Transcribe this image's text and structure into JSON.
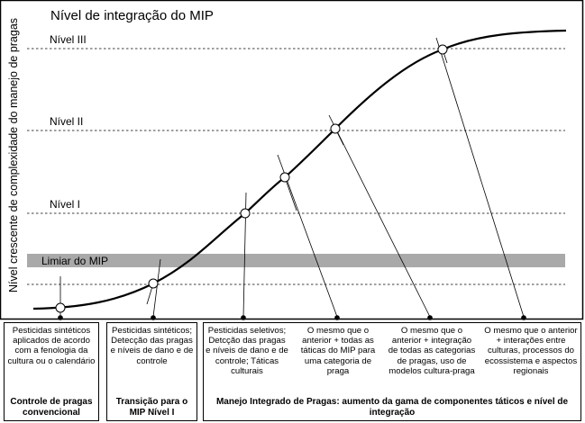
{
  "diagram": {
    "title": "Nível de integração do MIP",
    "y_axis_label": "Nível crescente de complexidade do manejo de pragas",
    "levels": {
      "n3": "Nível III",
      "n2": "Nível II",
      "n1": "Nível I",
      "threshold": "Limiar do MIP"
    }
  },
  "boxes": {
    "conventional": {
      "description": "Pesticidas sintéticos aplicados de acordo com a fenologia da cultura ou o calendário",
      "category": "Controle de pragas convencional"
    },
    "transition": {
      "description": "Pesticidas sintéticos; Detecção das pragas e níveis de dano e de controle",
      "category": "Transição para o MIP Nível I"
    },
    "integrated": {
      "category": "Manejo Integrado de Pragas: aumento da gama de componentes táticos e nível de integração",
      "items": [
        "Pesticidas seletivos; Detcção das pragas e níveis de dano e de controle; Táticas culturais",
        "O mesmo que o anterior + todas as táticas do MIP para uma categoria de praga",
        "O mesmo que o anterior + integração de todas as categorias de pragas, uso de modelos cultura-praga",
        "O mesmo que o anterior + interações entre culturas, processos do ecossistema e aspectos regionais"
      ]
    }
  }
}
